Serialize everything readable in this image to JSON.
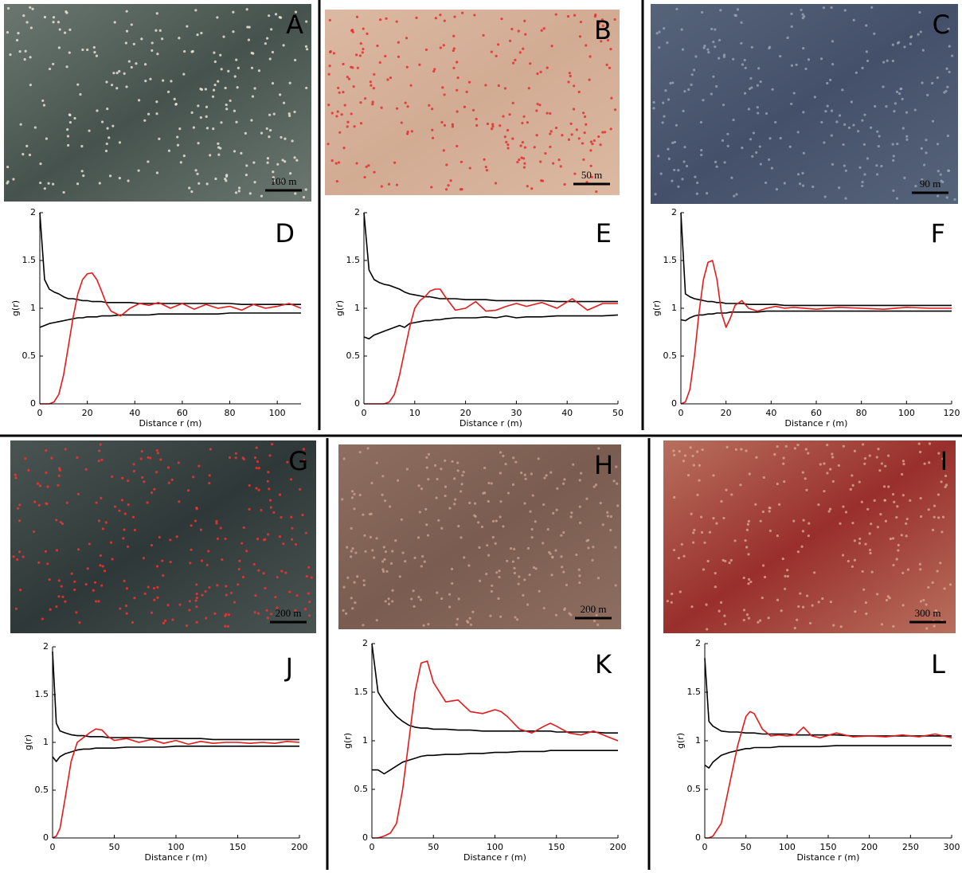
{
  "panels": [
    {
      "label": "A",
      "scale_bar": "100 m"
    },
    {
      "label": "B",
      "scale_bar": "50 m"
    },
    {
      "label": "C",
      "scale_bar": "90 m"
    },
    {
      "label": "G",
      "scale_bar": "200 m"
    },
    {
      "label": "H",
      "scale_bar": "200 m"
    },
    {
      "label": "I",
      "scale_bar": "300 m"
    }
  ],
  "chart_data": [
    {
      "type": "line",
      "label": "D",
      "xlabel": "Distance r (m)",
      "ylabel": "g(r)",
      "xlim": [
        0,
        110
      ],
      "ylim": [
        0,
        2
      ],
      "xticks": [
        0,
        20,
        40,
        60,
        80,
        100
      ],
      "yticks": [
        0,
        0.5,
        1,
        1.5,
        2
      ],
      "x": [
        0,
        2,
        4,
        6,
        8,
        10,
        12,
        14,
        16,
        18,
        20,
        22,
        24,
        26,
        28,
        30,
        34,
        38,
        42,
        46,
        50,
        55,
        60,
        65,
        70,
        75,
        80,
        85,
        90,
        95,
        100,
        105,
        110
      ],
      "series": [
        {
          "color": "#000000",
          "values": [
            2.0,
            1.3,
            1.2,
            1.17,
            1.15,
            1.12,
            1.1,
            1.1,
            1.09,
            1.08,
            1.08,
            1.07,
            1.07,
            1.07,
            1.06,
            1.06,
            1.06,
            1.06,
            1.05,
            1.05,
            1.05,
            1.05,
            1.05,
            1.05,
            1.05,
            1.05,
            1.05,
            1.04,
            1.04,
            1.04,
            1.04,
            1.04,
            1.04
          ]
        },
        {
          "color": "#000000",
          "values": [
            0.8,
            0.82,
            0.84,
            0.85,
            0.86,
            0.87,
            0.88,
            0.89,
            0.9,
            0.9,
            0.91,
            0.91,
            0.91,
            0.92,
            0.92,
            0.92,
            0.93,
            0.93,
            0.93,
            0.93,
            0.94,
            0.94,
            0.94,
            0.94,
            0.94,
            0.94,
            0.95,
            0.95,
            0.95,
            0.95,
            0.95,
            0.95,
            0.95
          ]
        },
        {
          "color": "#e41a1c",
          "values": [
            0,
            0,
            0,
            0.02,
            0.1,
            0.3,
            0.6,
            0.9,
            1.15,
            1.3,
            1.36,
            1.37,
            1.3,
            1.18,
            1.05,
            0.97,
            0.92,
            1.0,
            1.05,
            1.03,
            1.06,
            1.0,
            1.05,
            0.99,
            1.04,
            1.0,
            1.02,
            0.98,
            1.04,
            1.0,
            1.02,
            1.05,
            1.0
          ]
        }
      ]
    },
    {
      "type": "line",
      "label": "E",
      "xlabel": "Distance r (m)",
      "ylabel": "g(r)",
      "xlim": [
        0,
        50
      ],
      "ylim": [
        0,
        2
      ],
      "xticks": [
        0,
        10,
        20,
        30,
        40,
        50
      ],
      "yticks": [
        0,
        0.5,
        1,
        1.5,
        2
      ],
      "x": [
        0,
        1,
        2,
        3,
        4,
        5,
        6,
        7,
        8,
        9,
        10,
        11,
        12,
        13,
        14,
        15,
        16,
        18,
        20,
        22,
        24,
        26,
        28,
        30,
        32,
        35,
        38,
        41,
        44,
        47,
        50
      ],
      "series": [
        {
          "color": "#000000",
          "values": [
            2.0,
            1.4,
            1.3,
            1.27,
            1.25,
            1.24,
            1.22,
            1.2,
            1.17,
            1.15,
            1.14,
            1.13,
            1.12,
            1.12,
            1.11,
            1.1,
            1.1,
            1.1,
            1.09,
            1.09,
            1.09,
            1.08,
            1.08,
            1.08,
            1.08,
            1.08,
            1.07,
            1.07,
            1.07,
            1.07,
            1.07
          ]
        },
        {
          "color": "#000000",
          "values": [
            0.7,
            0.68,
            0.72,
            0.74,
            0.76,
            0.78,
            0.8,
            0.82,
            0.8,
            0.84,
            0.85,
            0.86,
            0.87,
            0.87,
            0.88,
            0.88,
            0.89,
            0.9,
            0.9,
            0.9,
            0.91,
            0.9,
            0.92,
            0.9,
            0.91,
            0.91,
            0.92,
            0.92,
            0.92,
            0.92,
            0.93
          ]
        },
        {
          "color": "#e41a1c",
          "values": [
            0,
            0,
            0,
            0,
            0,
            0.02,
            0.1,
            0.3,
            0.55,
            0.8,
            1.0,
            1.08,
            1.12,
            1.18,
            1.2,
            1.2,
            1.12,
            0.98,
            1.0,
            1.07,
            0.97,
            0.98,
            1.02,
            1.05,
            1.02,
            1.06,
            1.0,
            1.1,
            0.98,
            1.05,
            1.05
          ]
        }
      ]
    },
    {
      "type": "line",
      "label": "F",
      "xlabel": "Distance r (m)",
      "ylabel": "g(r)",
      "xlim": [
        0,
        120
      ],
      "ylim": [
        0,
        2
      ],
      "xticks": [
        0,
        20,
        40,
        60,
        80,
        100,
        120
      ],
      "yticks": [
        0,
        0.5,
        1,
        1.5,
        2
      ],
      "x": [
        0,
        2,
        4,
        6,
        8,
        10,
        12,
        14,
        16,
        18,
        20,
        22,
        24,
        27,
        30,
        34,
        38,
        42,
        46,
        50,
        60,
        70,
        80,
        90,
        100,
        110,
        120
      ],
      "series": [
        {
          "color": "#000000",
          "values": [
            2.0,
            1.15,
            1.12,
            1.1,
            1.09,
            1.08,
            1.07,
            1.07,
            1.06,
            1.06,
            1.05,
            1.05,
            1.05,
            1.05,
            1.04,
            1.04,
            1.04,
            1.04,
            1.03,
            1.03,
            1.03,
            1.03,
            1.03,
            1.03,
            1.03,
            1.03,
            1.03
          ]
        },
        {
          "color": "#000000",
          "values": [
            0.88,
            0.87,
            0.9,
            0.92,
            0.93,
            0.93,
            0.94,
            0.94,
            0.95,
            0.95,
            0.95,
            0.96,
            0.96,
            0.96,
            0.96,
            0.96,
            0.97,
            0.97,
            0.97,
            0.97,
            0.97,
            0.97,
            0.97,
            0.97,
            0.97,
            0.97,
            0.97
          ]
        },
        {
          "color": "#e41a1c",
          "values": [
            0,
            0.02,
            0.15,
            0.5,
            0.95,
            1.3,
            1.48,
            1.5,
            1.3,
            0.95,
            0.8,
            0.9,
            1.03,
            1.08,
            1.0,
            0.97,
            1.0,
            1.02,
            1.0,
            1.01,
            0.99,
            1.01,
            1.0,
            0.99,
            1.01,
            1.0,
            1.0
          ]
        }
      ]
    },
    {
      "type": "line",
      "label": "J",
      "xlabel": "Distance r (m)",
      "ylabel": "g(r)",
      "xlim": [
        0,
        200
      ],
      "ylim": [
        0,
        2
      ],
      "xticks": [
        0,
        50,
        100,
        150,
        200
      ],
      "yticks": [
        0,
        0.5,
        1,
        1.5,
        2
      ],
      "x": [
        0,
        3,
        6,
        10,
        15,
        20,
        25,
        30,
        35,
        40,
        45,
        50,
        60,
        70,
        80,
        90,
        100,
        110,
        120,
        130,
        140,
        150,
        160,
        170,
        180,
        190,
        200
      ],
      "series": [
        {
          "color": "#000000",
          "values": [
            1.95,
            1.2,
            1.12,
            1.1,
            1.08,
            1.07,
            1.07,
            1.06,
            1.06,
            1.06,
            1.05,
            1.05,
            1.05,
            1.05,
            1.04,
            1.04,
            1.04,
            1.04,
            1.04,
            1.03,
            1.03,
            1.03,
            1.03,
            1.03,
            1.03,
            1.03,
            1.03
          ]
        },
        {
          "color": "#000000",
          "values": [
            0.85,
            0.8,
            0.85,
            0.88,
            0.9,
            0.92,
            0.93,
            0.93,
            0.94,
            0.94,
            0.94,
            0.94,
            0.95,
            0.95,
            0.95,
            0.95,
            0.96,
            0.96,
            0.96,
            0.96,
            0.96,
            0.96,
            0.96,
            0.96,
            0.96,
            0.96,
            0.96
          ]
        },
        {
          "color": "#e41a1c",
          "values": [
            0,
            0.02,
            0.1,
            0.4,
            0.8,
            1.0,
            1.05,
            1.1,
            1.14,
            1.13,
            1.06,
            1.02,
            1.04,
            1.0,
            1.03,
            0.99,
            1.02,
            0.98,
            1.01,
            0.99,
            1.0,
            1.0,
            0.99,
            1.0,
            0.99,
            1.01,
            1.0
          ]
        }
      ]
    },
    {
      "type": "line",
      "label": "K",
      "xlabel": "Distance r (m)",
      "ylabel": "g(r)",
      "xlim": [
        0,
        200
      ],
      "ylim": [
        0,
        2
      ],
      "xticks": [
        0,
        50,
        100,
        150,
        200
      ],
      "yticks": [
        0,
        0.5,
        1,
        1.5,
        2
      ],
      "x": [
        0,
        5,
        10,
        15,
        20,
        25,
        30,
        35,
        40,
        45,
        50,
        60,
        70,
        80,
        90,
        100,
        105,
        110,
        120,
        130,
        140,
        145,
        150,
        160,
        170,
        180,
        190,
        200
      ],
      "series": [
        {
          "color": "#000000",
          "values": [
            2.0,
            1.5,
            1.4,
            1.32,
            1.25,
            1.2,
            1.16,
            1.14,
            1.13,
            1.13,
            1.12,
            1.12,
            1.11,
            1.11,
            1.1,
            1.1,
            1.1,
            1.1,
            1.1,
            1.1,
            1.1,
            1.1,
            1.09,
            1.09,
            1.09,
            1.09,
            1.08,
            1.08
          ]
        },
        {
          "color": "#000000",
          "values": [
            0.7,
            0.7,
            0.66,
            0.7,
            0.74,
            0.78,
            0.8,
            0.82,
            0.84,
            0.85,
            0.85,
            0.86,
            0.86,
            0.87,
            0.87,
            0.88,
            0.88,
            0.88,
            0.89,
            0.89,
            0.89,
            0.9,
            0.9,
            0.9,
            0.9,
            0.9,
            0.9,
            0.9
          ]
        },
        {
          "color": "#e41a1c",
          "values": [
            0,
            0,
            0.02,
            0.05,
            0.15,
            0.5,
            1.0,
            1.5,
            1.8,
            1.82,
            1.6,
            1.4,
            1.42,
            1.3,
            1.28,
            1.32,
            1.3,
            1.25,
            1.12,
            1.08,
            1.15,
            1.18,
            1.15,
            1.08,
            1.06,
            1.1,
            1.05,
            1.0
          ]
        }
      ]
    },
    {
      "type": "line",
      "label": "L",
      "xlabel": "Distance r (m)",
      "ylabel": "g(r)",
      "xlim": [
        0,
        300
      ],
      "ylim": [
        0,
        2
      ],
      "xticks": [
        0,
        50,
        100,
        150,
        200,
        250,
        300
      ],
      "yticks": [
        0,
        0.5,
        1,
        1.5,
        2
      ],
      "x": [
        0,
        5,
        10,
        20,
        30,
        40,
        50,
        55,
        60,
        70,
        80,
        90,
        100,
        110,
        120,
        130,
        140,
        160,
        180,
        200,
        220,
        240,
        260,
        280,
        300
      ],
      "series": [
        {
          "color": "#000000",
          "values": [
            1.85,
            1.2,
            1.15,
            1.1,
            1.09,
            1.09,
            1.08,
            1.08,
            1.08,
            1.07,
            1.07,
            1.07,
            1.07,
            1.06,
            1.06,
            1.06,
            1.06,
            1.06,
            1.05,
            1.05,
            1.05,
            1.05,
            1.05,
            1.05,
            1.05
          ]
        },
        {
          "color": "#000000",
          "values": [
            0.75,
            0.72,
            0.78,
            0.85,
            0.88,
            0.9,
            0.92,
            0.92,
            0.93,
            0.93,
            0.93,
            0.94,
            0.94,
            0.94,
            0.94,
            0.94,
            0.94,
            0.95,
            0.95,
            0.95,
            0.95,
            0.95,
            0.95,
            0.95,
            0.95
          ]
        },
        {
          "color": "#e41a1c",
          "values": [
            0,
            0,
            0.02,
            0.15,
            0.55,
            0.95,
            1.25,
            1.3,
            1.28,
            1.12,
            1.05,
            1.06,
            1.05,
            1.06,
            1.14,
            1.05,
            1.03,
            1.08,
            1.04,
            1.05,
            1.04,
            1.06,
            1.04,
            1.07,
            1.03
          ]
        }
      ]
    }
  ]
}
